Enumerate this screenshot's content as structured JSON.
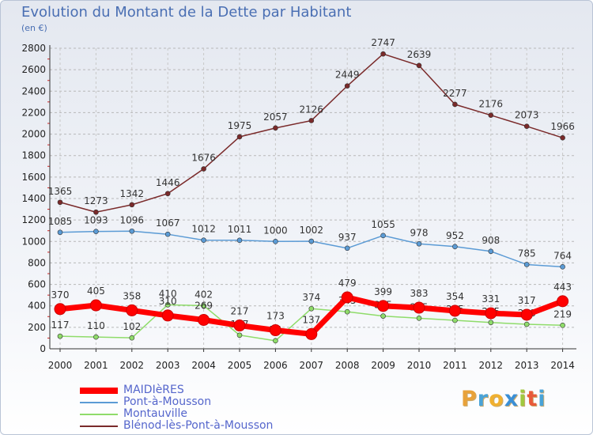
{
  "title": "Evolution du Montant de la Dette par Habitant",
  "subtitle": "(en €)",
  "logo": {
    "letters": [
      "P",
      "r",
      "o",
      "x",
      "i",
      "t",
      "i"
    ],
    "colors": [
      "#e8a23a",
      "#4aa3d8",
      "#f0b030",
      "#3b8fd6",
      "#a0c840",
      "#e85a3a",
      "#4aa3d8"
    ]
  },
  "chart_data": {
    "type": "line",
    "title": "Evolution du Montant de la Dette par Habitant",
    "subtitle": "(en €)",
    "x": [
      2000,
      2001,
      2002,
      2003,
      2004,
      2005,
      2006,
      2007,
      2008,
      2009,
      2010,
      2011,
      2012,
      2013,
      2014
    ],
    "x_tick_labels": [
      "2000",
      "2001",
      "2002",
      "2003",
      "2004",
      "2005",
      "2006",
      "2007",
      "2008",
      "2009",
      "2010",
      "2011",
      "2012",
      "2013",
      "2014"
    ],
    "ylim": [
      0,
      2800
    ],
    "y_ticks": [
      0,
      200,
      400,
      600,
      800,
      1000,
      1200,
      1400,
      1600,
      1800,
      2000,
      2200,
      2400,
      2600,
      2800
    ],
    "grid": true,
    "legend_position": "bottom-left",
    "series": [
      {
        "name": "MAIDIèRES",
        "color": "#ff0000",
        "values": [
          370,
          405,
          358,
          310,
          269,
          217,
          173,
          137,
          479,
          399,
          383,
          354,
          331,
          317,
          443
        ],
        "labels": [
          "370",
          "405",
          "358",
          "310",
          "269",
          "217",
          "173",
          "137",
          "479",
          "399",
          "383",
          "354",
          "331",
          "317",
          "443"
        ]
      },
      {
        "name": "Pont-à-Mousson",
        "color": "#5b9bd5",
        "values": [
          1085,
          1093,
          1096,
          1067,
          1012,
          1011,
          1000,
          1002,
          937,
          1055,
          978,
          952,
          908,
          785,
          764
        ],
        "labels": [
          "1085",
          "1093",
          "1096",
          "1067",
          "1012",
          "1011",
          "1000",
          "1002",
          "937",
          "1055",
          "978",
          "952",
          "908",
          "785",
          "764"
        ]
      },
      {
        "name": "Montauville",
        "color": "#8fdc6a",
        "values": [
          117,
          110,
          102,
          410,
          402,
          127,
          75,
          374,
          345,
          305,
          285,
          265,
          245,
          228,
          219
        ],
        "labels": [
          "117",
          "110",
          "102",
          "410",
          "402",
          "127",
          "75",
          "374",
          "345",
          "305",
          "285",
          "265",
          "245",
          "228",
          "219"
        ]
      },
      {
        "name": "Blénod-lès-Pont-à-Mousson",
        "color": "#7a2a2a",
        "values": [
          1365,
          1273,
          1342,
          1446,
          1676,
          1975,
          2057,
          2126,
          2449,
          2747,
          2639,
          2277,
          2176,
          2073,
          1966
        ],
        "labels": [
          "1365",
          "1273",
          "1342",
          "1446",
          "1676",
          "1975",
          "2057",
          "2126",
          "2449",
          "2747",
          "2639",
          "2277",
          "2176",
          "2073",
          "1966"
        ]
      }
    ]
  }
}
